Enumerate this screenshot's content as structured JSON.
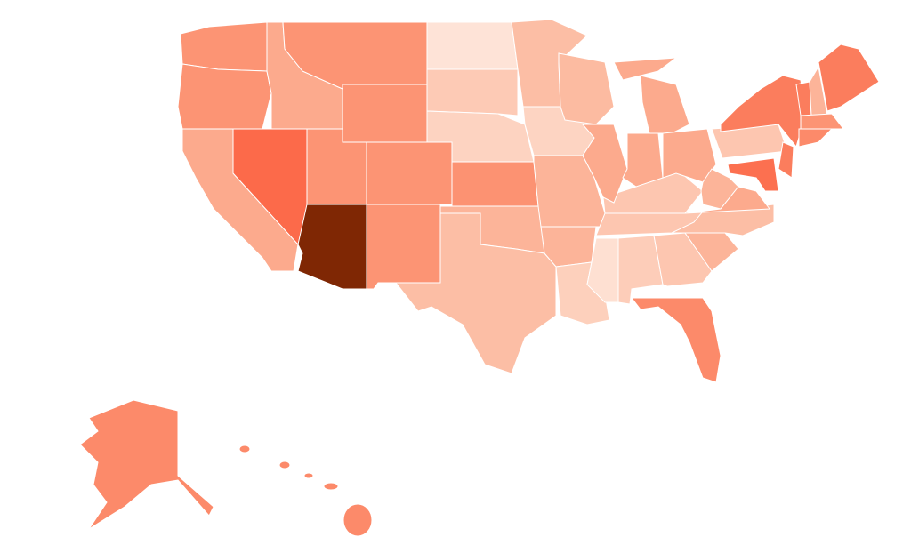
{
  "map": {
    "regions": [
      {
        "color": "#fc9474"
      },
      {
        "color": "#fc9474"
      },
      {
        "color": "#fcaa8d"
      },
      {
        "color": "#fc6a4a"
      },
      {
        "color": "#fcaa8d"
      },
      {
        "color": "#fc9474"
      },
      {
        "color": "#fc9474"
      },
      {
        "color": "#fc9474"
      },
      {
        "color": "#fc9474"
      },
      {
        "color": "#7f2704"
      },
      {
        "color": "#fc9474"
      },
      {
        "color": "#fee3d7"
      },
      {
        "color": "#fdcab5"
      },
      {
        "color": "#fdd3c1"
      },
      {
        "color": "#fc9272"
      },
      {
        "color": "#fcb499"
      },
      {
        "color": "#fcbea5"
      },
      {
        "color": "#fcbea5"
      },
      {
        "color": "#fdd4c2"
      },
      {
        "color": "#fcb499"
      },
      {
        "color": "#fcb499"
      },
      {
        "color": "#fdd0bc"
      },
      {
        "color": "#fee0d2"
      },
      {
        "color": "#fdcdb9"
      },
      {
        "color": "#fdc6b0"
      },
      {
        "color": "#fc8a6a"
      },
      {
        "color": "#fcb499"
      },
      {
        "color": "#fcbea5"
      },
      {
        "color": "#fdc6b0"
      },
      {
        "color": "#fdc6b0"
      },
      {
        "color": "#fcbba1"
      },
      {
        "color": "#fcaa8d"
      },
      {
        "color": "#fcaa8d"
      },
      {
        "color": "#fcaa8d"
      },
      {
        "color": "#fcaa8d"
      },
      {
        "color": "#fcaa8d"
      },
      {
        "color": "#fcb499"
      },
      {
        "color": "#fcaa8d"
      },
      {
        "color": "#fdc6b0"
      },
      {
        "color": "#fb7d5d"
      },
      {
        "color": "#fb7d5d"
      },
      {
        "color": "#fcb499"
      },
      {
        "color": "#fb7d5d"
      },
      {
        "color": "#fc9474"
      },
      {
        "color": "#fc8a6a"
      },
      {
        "color": "#fb7d5d"
      },
      {
        "color": "#fc7050"
      },
      {
        "color": "#fc8a6a"
      }
    ]
  }
}
